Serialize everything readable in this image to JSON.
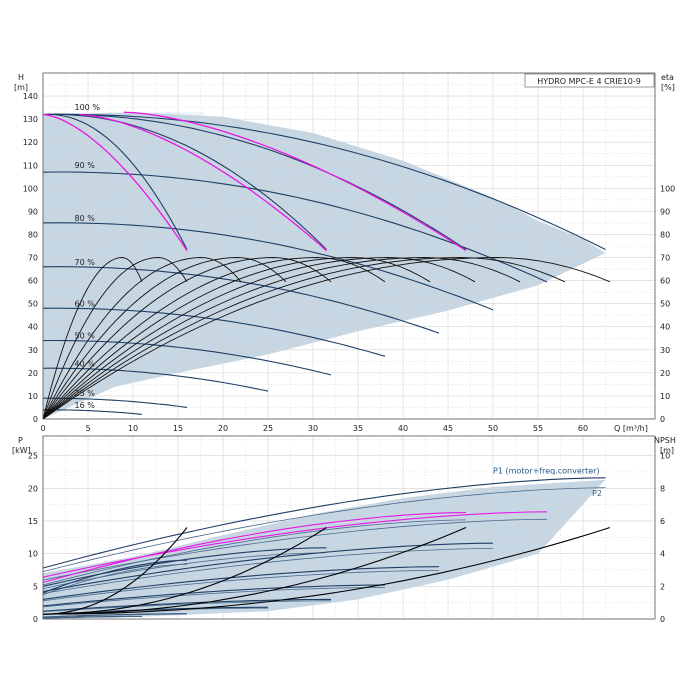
{
  "chart_data": [
    {
      "type": "line",
      "title": "HYDRO MPC-E 4 CRIE10-9",
      "ylabel_left": "H",
      "ylabel_left_unit": "[m]",
      "ylabel_right": "eta",
      "ylabel_right_unit": "[%]",
      "xlabel": "Q [m³/h]",
      "xlim": [
        0,
        68
      ],
      "ylim": [
        0,
        150
      ],
      "x_ticks": [
        0,
        5,
        10,
        15,
        20,
        25,
        30,
        35,
        40,
        45,
        50,
        55,
        60
      ],
      "y_ticks": [
        0,
        10,
        20,
        30,
        40,
        50,
        60,
        70,
        80,
        90,
        100,
        110,
        120,
        130,
        140
      ],
      "eta_ticks": [
        0,
        10,
        20,
        30,
        40,
        50,
        60,
        70,
        80,
        90,
        100
      ],
      "grid": true,
      "speed_labels": [
        {
          "text": "100 %",
          "x": 3.5,
          "y": 133
        },
        {
          "text": "90 %",
          "x": 3.5,
          "y": 108
        },
        {
          "text": "80 %",
          "x": 3.5,
          "y": 85
        },
        {
          "text": "70 %",
          "x": 3.5,
          "y": 66
        },
        {
          "text": "60 %",
          "x": 3.5,
          "y": 48
        },
        {
          "text": "50 %",
          "x": 3.5,
          "y": 34
        },
        {
          "text": "40 %",
          "x": 3.5,
          "y": 22
        },
        {
          "text": "25 %",
          "x": 3.5,
          "y": 9
        },
        {
          "text": "16 %",
          "x": 3.5,
          "y": 4
        }
      ],
      "operating_area": [
        [
          0,
          132
        ],
        [
          10,
          133
        ],
        [
          20,
          131
        ],
        [
          30,
          124
        ],
        [
          40,
          112
        ],
        [
          50,
          96
        ],
        [
          55,
          86
        ],
        [
          60,
          78
        ],
        [
          62.5,
          72
        ],
        [
          55,
          58
        ],
        [
          45,
          47
        ],
        [
          35,
          38
        ],
        [
          25,
          28
        ],
        [
          15,
          20
        ],
        [
          8,
          14
        ],
        [
          0,
          0
        ]
      ],
      "qh_curves": [
        {
          "name": "100 % (4 pumps)",
          "q_max": 62.5,
          "h0": 132,
          "h_end": 73
        },
        {
          "name": "100 % (3 pumps)",
          "q_max": 47,
          "h0": 132,
          "h_end": 73
        },
        {
          "name": "100 % (2 pumps)",
          "q_max": 31.5,
          "h0": 132,
          "h_end": 73
        },
        {
          "name": "100 % (1 pump)",
          "q_max": 16,
          "h0": 132,
          "h_end": 73
        },
        {
          "name": "90 %",
          "q_max": 56,
          "h0": 107,
          "h_end": 59
        },
        {
          "name": "80 %",
          "q_max": 50,
          "h0": 85,
          "h_end": 47
        },
        {
          "name": "70 %",
          "q_max": 44,
          "h0": 66,
          "h_end": 37
        },
        {
          "name": "60 %",
          "q_max": 38,
          "h0": 48,
          "h_end": 27
        },
        {
          "name": "50 %",
          "q_max": 32,
          "h0": 34,
          "h_end": 19
        },
        {
          "name": "40 %",
          "q_max": 25,
          "h0": 22,
          "h_end": 12
        },
        {
          "name": "25 %",
          "q_max": 16,
          "h0": 9,
          "h_end": 5
        },
        {
          "name": "16 %",
          "q_max": 11,
          "h0": 4,
          "h_end": 2
        }
      ],
      "eta_curves": [
        {
          "q_max": 11,
          "peak": 70
        },
        {
          "q_max": 16,
          "peak": 70
        },
        {
          "q_max": 22,
          "peak": 70
        },
        {
          "q_max": 27,
          "peak": 70
        },
        {
          "q_max": 32,
          "peak": 70
        },
        {
          "q_max": 38,
          "peak": 70
        },
        {
          "q_max": 43,
          "peak": 70
        },
        {
          "q_max": 48,
          "peak": 70
        },
        {
          "q_max": 53,
          "peak": 70
        },
        {
          "q_max": 58,
          "peak": 70
        },
        {
          "q_max": 63,
          "peak": 70
        }
      ]
    },
    {
      "type": "line",
      "ylabel_left": "P",
      "ylabel_left_unit": "[kW]",
      "ylabel_right": "NPSH",
      "ylabel_right_unit": "[m]",
      "xlim": [
        0,
        68
      ],
      "ylim": [
        0,
        28
      ],
      "p_ticks": [
        0,
        5,
        10,
        15,
        20,
        25
      ],
      "npsh_ticks": [
        0,
        2,
        4,
        6,
        8,
        10
      ],
      "npsh_max": 11.2,
      "grid": true,
      "series_labels": [
        {
          "text": "P1 (motor+freq.converter)",
          "x": 50,
          "y": 22.3
        },
        {
          "text": "P2",
          "x": 61,
          "y": 18.8
        }
      ],
      "power_area": [
        [
          0,
          7
        ],
        [
          10,
          9.5
        ],
        [
          20,
          12.8
        ],
        [
          30,
          16
        ],
        [
          40,
          18.5
        ],
        [
          50,
          20.2
        ],
        [
          62.5,
          21.3
        ],
        [
          55,
          10
        ],
        [
          45,
          6
        ],
        [
          35,
          3
        ],
        [
          25,
          1.2
        ],
        [
          10,
          0.3
        ],
        [
          0,
          0
        ]
      ],
      "p1_curves": [
        {
          "q_max": 62.5,
          "p0": 7.8,
          "p_end": 21.6
        },
        {
          "q_max": 56,
          "p0": 6.4,
          "p_end": 16.4
        },
        {
          "q_max": 47,
          "p0": 5.6,
          "p_end": 16.3
        },
        {
          "q_max": 31.5,
          "p0": 5,
          "p_end": 10.9
        },
        {
          "q_max": 16,
          "p0": 4,
          "p_end": 9
        },
        {
          "q_max": 50,
          "p0": 4.2,
          "p_end": 11.6
        },
        {
          "q_max": 44,
          "p0": 3,
          "p_end": 8
        },
        {
          "q_max": 38,
          "p0": 2,
          "p_end": 5.2
        },
        {
          "q_max": 32,
          "p0": 1.2,
          "p_end": 3
        },
        {
          "q_max": 25,
          "p0": 0.7,
          "p_end": 1.8
        },
        {
          "q_max": 16,
          "p0": 0.3,
          "p_end": 0.8
        },
        {
          "q_max": 11,
          "p0": 0.15,
          "p_end": 0.4
        }
      ],
      "npsh_curves": [
        {
          "q_max": 63,
          "n_end": 11.2
        },
        {
          "q_max": 47,
          "n_end": 11.2
        },
        {
          "q_max": 31.5,
          "n_end": 11.2
        },
        {
          "q_max": 16,
          "n_end": 11.2
        }
      ]
    }
  ]
}
